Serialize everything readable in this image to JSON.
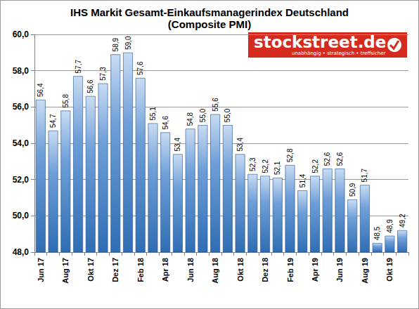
{
  "chart_data": {
    "type": "bar",
    "title": "IHS Markit Gesamt-Einkaufsmanagerindex Deutschland",
    "subtitle": "(Composite PMI)",
    "annotations": [
      "stockstreet.de",
      "unabhängig • strategisch • treffsicher"
    ],
    "categories": [
      "Jun 17",
      null,
      "Aug 17",
      null,
      "Okt 17",
      null,
      "Dez 17",
      null,
      "Feb 18",
      null,
      "Apr 18",
      null,
      "Jun 18",
      null,
      "Aug 18",
      null,
      "Okt 18",
      null,
      "Dez 18",
      null,
      "Feb 19",
      null,
      "Apr 19",
      null,
      "Jun 19",
      null,
      "Aug 19",
      null,
      "Okt 19",
      null
    ],
    "values": [
      56.4,
      54.7,
      55.8,
      57.7,
      56.6,
      57.3,
      58.9,
      59.0,
      57.6,
      55.1,
      54.6,
      53.4,
      54.8,
      55.0,
      55.6,
      55.0,
      53.4,
      52.3,
      52.2,
      52.1,
      52.8,
      51.4,
      52.2,
      52.6,
      52.6,
      50.9,
      51.7,
      48.5,
      48.9,
      49.2
    ],
    "value_labels": [
      "56,4",
      "54,7",
      "55,8",
      "57,7",
      "56,6",
      "57,3",
      "58,9",
      "59,0",
      "57,6",
      "55,1",
      "54,6",
      "53,4",
      "54,8",
      "55,0",
      "55,6",
      "55,0",
      "53,4",
      "52,3",
      "52,2",
      "52,1",
      "52,8",
      "51,4",
      "52,2",
      "52,6",
      "52,6",
      "50,9",
      "51,7",
      "48,5",
      "48,9",
      "49,2"
    ],
    "color": "#2f6db3",
    "ylim": [
      48,
      60
    ],
    "yticks": [
      {
        "value": 48,
        "label": "48,0"
      },
      {
        "value": 50,
        "label": "50,0"
      },
      {
        "value": 52,
        "label": "52,0"
      },
      {
        "value": 54,
        "label": "54,0"
      },
      {
        "value": 56,
        "label": "56,0"
      },
      {
        "value": 58,
        "label": "58,0"
      },
      {
        "value": 60,
        "label": "60,0"
      }
    ],
    "grid": true,
    "data_labels": true
  }
}
